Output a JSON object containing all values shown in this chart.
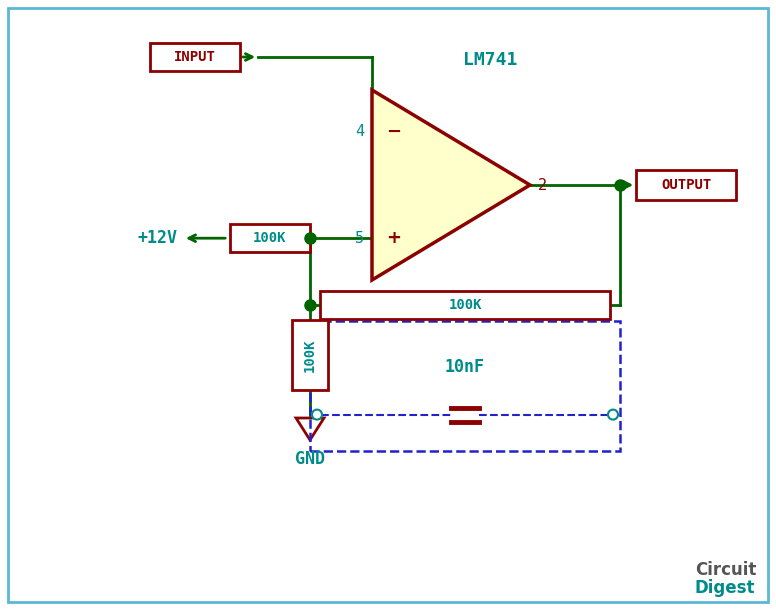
{
  "bg_color": "#ffffff",
  "border_color": "#5bb8d4",
  "wire_color": "#006400",
  "opamp_fill": "#ffffcc",
  "opamp_border": "#8b0000",
  "label_color": "#8b0000",
  "teal_color": "#008b8b",
  "dashed_color": "#2222cc",
  "title": "LM741",
  "input_label": "INPUT",
  "output_label": "OUTPUT",
  "r1_label": "100K",
  "r2_label": "100K",
  "r3_label": "100K",
  "cap_label": "10nF",
  "v_label": "+12V",
  "gnd_label": "GND",
  "pin4_label": "4",
  "pin5_label": "5",
  "pin2_label": "2",
  "minus_label": "−",
  "plus_label": "+",
  "circuit_label1": "Circuit",
  "circuit_label2": "Digest"
}
